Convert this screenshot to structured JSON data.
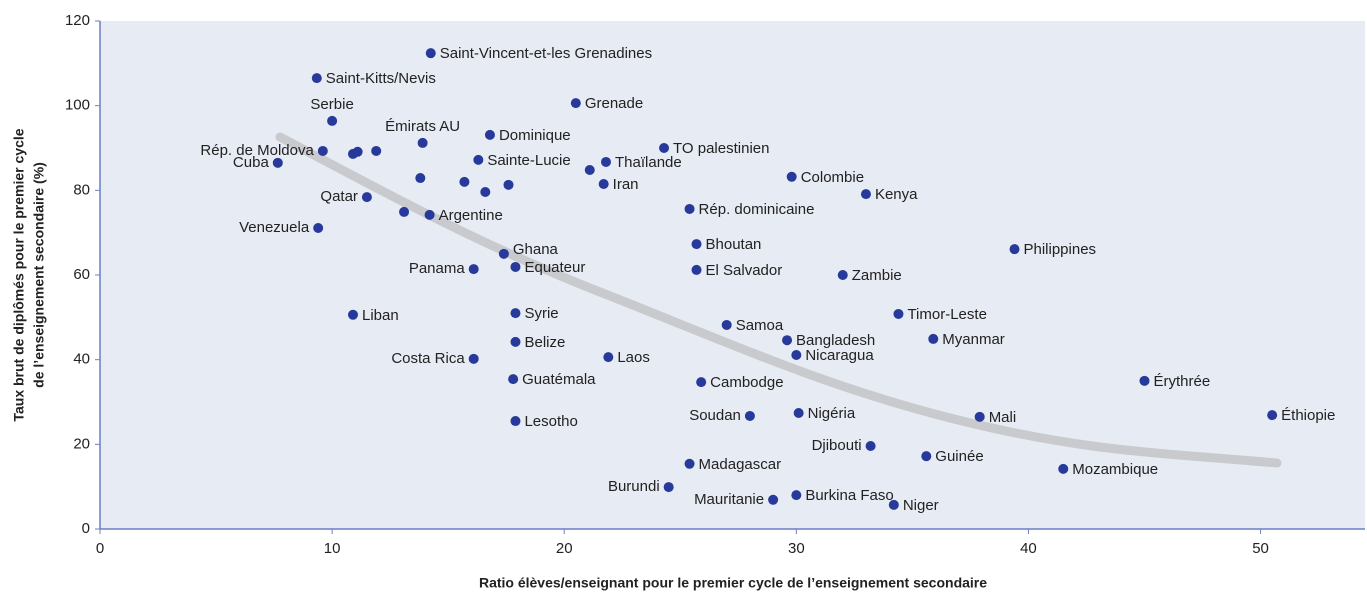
{
  "chart_data": {
    "type": "scatter",
    "xlabel": "Ratio élèves/enseignant pour le premier cycle de l’enseignement secondaire",
    "ylabel": [
      "Taux brut de diplômés pour le premier cycle",
      "de l’enseignement secondaire (%)"
    ],
    "xlim": [
      0,
      54.5
    ],
    "ylim": [
      0,
      120
    ],
    "xticks": [
      0,
      10,
      20,
      30,
      40,
      50
    ],
    "yticks": [
      0,
      20,
      40,
      60,
      80,
      100,
      120
    ],
    "grid": false,
    "color": "#27399a",
    "labels": [
      "Saint-Vincent-et-les Grenadines",
      "Saint-Kitts/Nevis",
      "Grenade",
      "Serbie",
      "Dominique",
      "TO palestinien",
      "Émirats AU",
      "Rép. de Moldova",
      null,
      null,
      null,
      "Sainte-Lucie",
      "Thaïlande",
      null,
      "Cuba",
      "Iran",
      "Colombie",
      null,
      null,
      null,
      null,
      "Kenya",
      "Qatar",
      null,
      "Argentine",
      "Rép. dominicaine",
      "Venezuela",
      "Bhoutan",
      "Philippines",
      "Ghana",
      "Panama",
      "Equateur",
      "El Salvador",
      "Zambie",
      "Liban",
      "Syrie",
      "Timor-Leste",
      "Samoa",
      "Bangladesh",
      "Belize",
      "Myanmar",
      "Nicaragua",
      "Costa Rica",
      "Laos",
      "Guatémala",
      "Cambodge",
      "Érythrée",
      "Soudan",
      "Nigéria",
      "Mali",
      "Éthiopie",
      "Lesotho",
      "Djibouti",
      "Guinée",
      "Madagascar",
      "Mozambique",
      "Burundi",
      "Mauritanie",
      "Burkina Faso",
      "Niger"
    ],
    "x": [
      14.25,
      9.34,
      20.5,
      10.0,
      16.8,
      24.3,
      13.9,
      9.6,
      10.9,
      11.1,
      11.9,
      16.3,
      21.8,
      21.1,
      7.66,
      21.7,
      29.8,
      13.8,
      15.7,
      16.6,
      17.6,
      33.0,
      11.5,
      13.1,
      14.2,
      25.4,
      9.4,
      25.7,
      39.4,
      17.4,
      16.1,
      17.9,
      25.7,
      32.0,
      10.9,
      17.9,
      34.4,
      27.0,
      29.6,
      17.9,
      35.9,
      30.0,
      16.1,
      21.9,
      17.8,
      25.9,
      45.0,
      28.0,
      30.1,
      37.9,
      50.5,
      17.9,
      33.2,
      35.6,
      25.4,
      41.5,
      24.5,
      29.0,
      30.0,
      34.2
    ],
    "values": [
      112.4,
      106.5,
      100.6,
      96.4,
      93.1,
      90.0,
      91.2,
      89.3,
      88.6,
      89.1,
      89.3,
      87.2,
      86.7,
      84.8,
      86.5,
      81.5,
      83.2,
      82.9,
      82.0,
      79.6,
      81.3,
      79.1,
      78.4,
      74.9,
      74.2,
      75.6,
      71.1,
      67.3,
      66.1,
      65.0,
      61.4,
      61.9,
      61.2,
      60.0,
      50.6,
      51.0,
      50.8,
      48.2,
      44.6,
      44.2,
      44.9,
      41.1,
      40.2,
      40.6,
      35.4,
      34.7,
      35.0,
      26.7,
      27.4,
      26.5,
      26.9,
      25.5,
      19.6,
      17.2,
      15.4,
      14.2,
      9.9,
      6.9,
      8.0,
      5.7
    ]
  }
}
